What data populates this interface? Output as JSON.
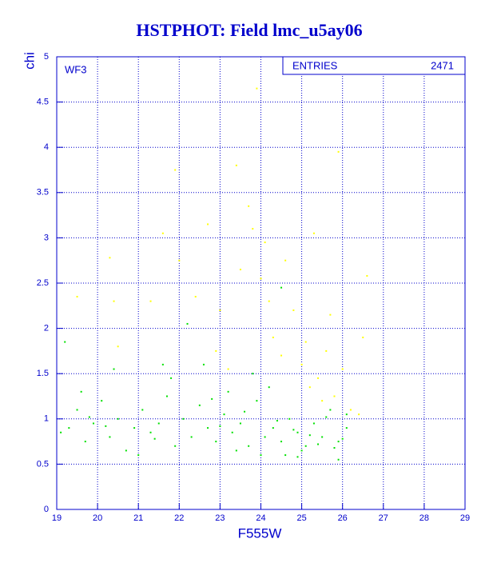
{
  "chart_data": {
    "type": "scatter",
    "title": "HSTPHOT: Field lmc_u5ay06",
    "x_label": "F555W",
    "y_label": "chi",
    "panel_label": "WF3",
    "entries_label": "ENTRIES",
    "entries": 2471,
    "xlim": [
      19,
      29
    ],
    "ylim": [
      0,
      5
    ],
    "xticks": [
      19,
      20,
      21,
      22,
      23,
      24,
      25,
      26,
      27,
      28,
      29
    ],
    "yticks": [
      0,
      0.5,
      1,
      1.5,
      2,
      2.5,
      3,
      3.5,
      4,
      4.5,
      5
    ],
    "grid": true,
    "series": [
      {
        "color": "#00e000",
        "x": [
          19.1,
          19.3,
          19.5,
          19.7,
          19.9,
          20.1,
          20.3,
          20.5,
          20.7,
          20.9,
          21.1,
          21.3,
          21.5,
          21.7,
          21.9,
          22.1,
          22.3,
          22.5,
          22.7,
          22.9,
          23.1,
          23.3,
          23.5,
          23.7,
          23.9,
          24.1,
          24.3,
          24.5,
          24.7,
          24.9,
          25.1,
          25.3,
          25.5,
          25.7,
          25.9,
          26.1,
          19.2,
          19.6,
          20.4,
          21.0,
          21.8,
          22.2,
          22.6,
          23.2,
          23.8,
          24.2,
          24.6,
          25.0,
          25.4,
          25.8,
          26.0,
          23.4,
          24.0,
          24.4,
          24.8,
          25.2,
          25.6,
          26.1,
          22.8,
          21.4,
          20.2,
          19.8,
          23.6,
          24.5,
          21.6,
          25.9,
          23.0,
          24.9
        ],
        "values": [
          0.85,
          0.9,
          1.1,
          0.75,
          0.95,
          1.2,
          0.8,
          1.0,
          0.65,
          0.9,
          1.1,
          0.85,
          0.95,
          1.25,
          0.7,
          1.0,
          0.8,
          1.15,
          0.9,
          0.75,
          1.05,
          0.85,
          0.95,
          0.7,
          1.2,
          0.8,
          0.9,
          0.75,
          1.0,
          0.85,
          0.7,
          0.95,
          0.8,
          1.1,
          0.75,
          0.9,
          1.85,
          1.3,
          1.55,
          0.6,
          1.45,
          2.05,
          1.6,
          1.3,
          1.5,
          1.35,
          0.6,
          0.65,
          0.72,
          0.68,
          0.78,
          0.65,
          0.6,
          0.98,
          0.88,
          0.82,
          1.02,
          1.05,
          1.22,
          0.78,
          0.92,
          1.02,
          1.08,
          2.45,
          1.6,
          0.55,
          0.92,
          0.58
        ]
      },
      {
        "color": "#ffff00",
        "x": [
          19.5,
          20.4,
          20.3,
          21.3,
          21.6,
          21.9,
          22.0,
          22.4,
          22.7,
          23.0,
          23.4,
          23.5,
          23.7,
          23.9,
          23.8,
          24.0,
          24.2,
          24.3,
          24.6,
          24.8,
          25.0,
          25.1,
          25.2,
          25.3,
          25.4,
          25.6,
          25.7,
          25.8,
          26.0,
          26.2,
          26.5,
          26.6,
          25.9,
          23.2,
          24.5,
          22.9,
          20.5,
          26.4,
          25.5,
          24.1
        ],
        "values": [
          2.35,
          2.3,
          2.78,
          2.3,
          3.05,
          3.75,
          2.75,
          2.35,
          3.15,
          2.2,
          3.8,
          2.65,
          3.35,
          4.65,
          3.1,
          2.55,
          2.3,
          1.9,
          2.75,
          2.2,
          1.6,
          1.85,
          1.35,
          3.05,
          1.45,
          1.75,
          2.15,
          1.25,
          1.55,
          1.1,
          1.9,
          2.58,
          3.95,
          1.55,
          1.7,
          1.75,
          1.8,
          1.05,
          1.2,
          2.95
        ]
      }
    ]
  }
}
